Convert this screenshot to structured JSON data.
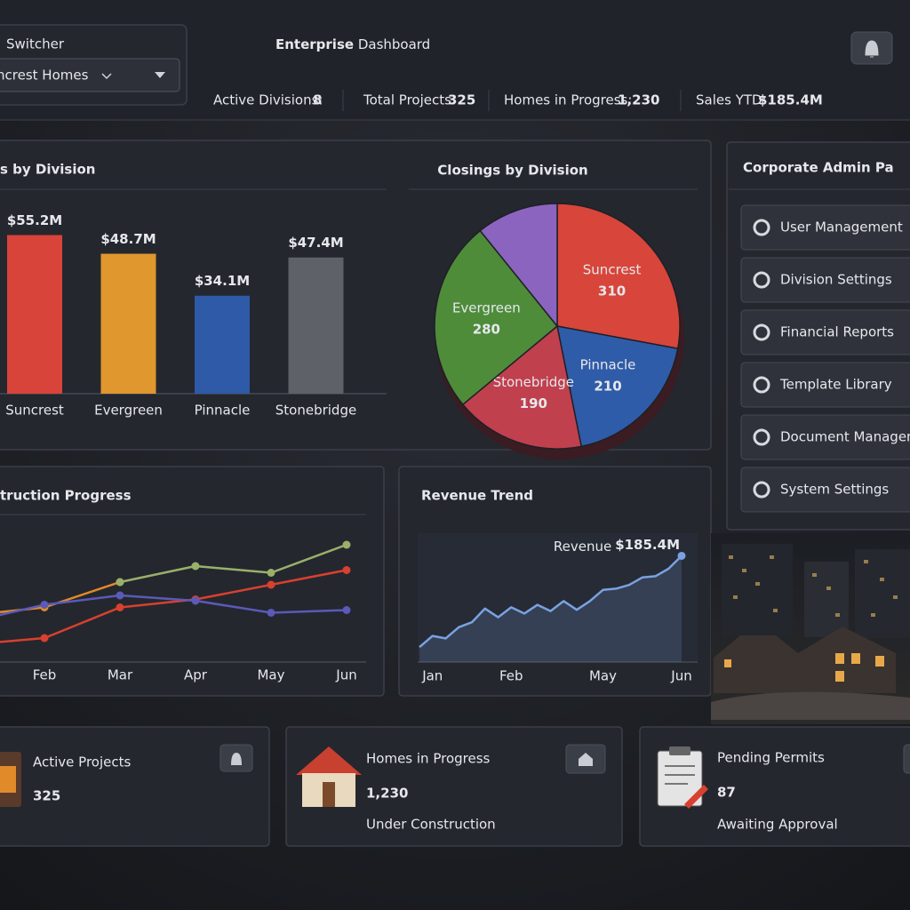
{
  "switcher": {
    "label": "Switcher",
    "value": "ncrest Homes"
  },
  "header": {
    "title_strong": "Enterprise",
    "title_rest": "Dashboard"
  },
  "stats": [
    {
      "label": "Active Divisions:",
      "value": 8
    },
    {
      "label": "Total Projects:",
      "value": 325
    },
    {
      "label": "Homes in Progress:",
      "value": "1,230"
    },
    {
      "label": "Sales YTD:",
      "value": "$185.4M"
    }
  ],
  "chart_data": [
    {
      "type": "bar",
      "title": "s by Division",
      "categories": [
        "Suncrest",
        "Evergreen",
        "Pinnacle",
        "Stonebridge"
      ],
      "values": [
        55.2,
        48.7,
        34.1,
        47.4
      ],
      "value_labels": [
        "$55.2M",
        "$48.7M",
        "$34.1M",
        "$47.4M"
      ],
      "colors": [
        "#d8433a",
        "#e0972e",
        "#2e5aa8",
        "#5e6168"
      ],
      "ylim": [
        0,
        60
      ]
    },
    {
      "type": "pie",
      "title": "Closings by Division",
      "categories": [
        "Suncrest",
        "Pinnacle",
        "Stonebridge",
        "Evergreen",
        null
      ],
      "values": [
        310,
        210,
        190,
        280,
        120
      ],
      "colors": [
        "#d8453a",
        "#2f5ca8",
        "#c0404e",
        "#4e8c3a",
        "#8b64c0"
      ]
    },
    {
      "type": "line",
      "title": "truction Progress",
      "categories": [
        null,
        "Feb",
        "Mar",
        "Apr",
        "May",
        "Jun"
      ],
      "series": [
        {
          "color": "#e08a2a",
          "values": [
            35,
            41,
            60,
            null,
            null,
            null
          ]
        },
        {
          "color": "#9ab06a",
          "values": [
            null,
            null,
            60,
            72,
            67,
            88
          ]
        },
        {
          "color": "#d8402f",
          "values": [
            13,
            18,
            41,
            47,
            58,
            69
          ]
        },
        {
          "color": "#5a5ab8",
          "values": [
            30,
            43,
            50,
            46,
            37,
            39
          ]
        }
      ],
      "markers": true,
      "ylim": [
        0,
        100
      ]
    },
    {
      "type": "line",
      "title": "Revenue Trend",
      "categories": [
        null,
        "Jan",
        null,
        null,
        null,
        null,
        null,
        "Feb",
        null,
        null,
        null,
        null,
        null,
        null,
        "May",
        null,
        null,
        null,
        null,
        null,
        "Jun"
      ],
      "series": [
        {
          "color": "#7aa2e0",
          "values": [
            112,
            121,
            119,
            128,
            132,
            143,
            136,
            144,
            139,
            146,
            141,
            149,
            142,
            149,
            158,
            159,
            162,
            168,
            169,
            175,
            185.4
          ],
          "value_labels": [
            null,
            null,
            null,
            null,
            null,
            null,
            null,
            null,
            null,
            null,
            null,
            null,
            null,
            null,
            null,
            null,
            null,
            null,
            null,
            null,
            "$185.4M"
          ]
        }
      ],
      "annotation": "Revenue",
      "area": true,
      "markers": false,
      "ylim": [
        100,
        200
      ]
    }
  ],
  "admin_panel": {
    "title": "Corporate Admin Pa",
    "items": [
      "User Management",
      "Division Settings",
      "Financial Reports",
      "Template Library",
      "Document Manageme",
      "System Settings"
    ]
  },
  "cards": [
    {
      "title": "Active Projects",
      "value": 325
    },
    {
      "title": "Homes in Progress",
      "value": "1,230",
      "subtitle": "Under Construction"
    },
    {
      "title": "Pending Permits",
      "value": 87,
      "subtitle": "Awaiting Approval"
    }
  ]
}
